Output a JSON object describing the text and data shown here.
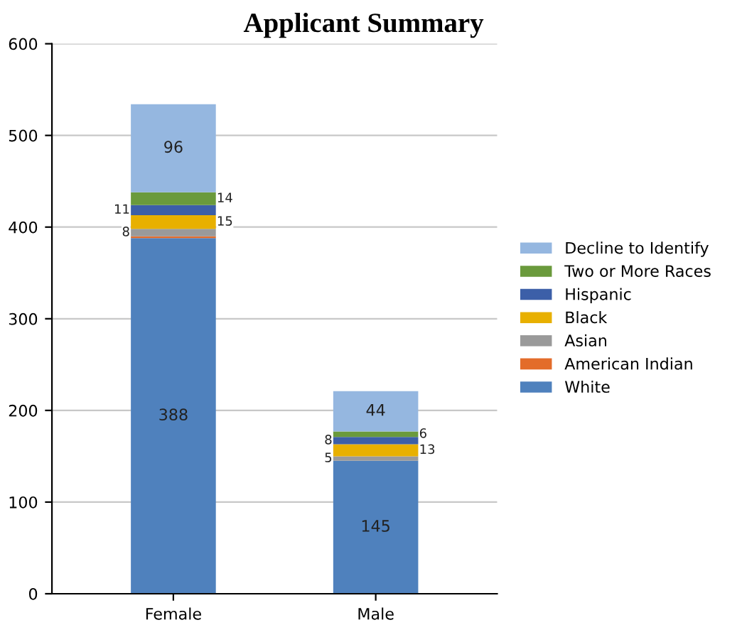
{
  "chart_data": {
    "type": "bar",
    "title": "Applicant Summary",
    "categories": [
      "Female",
      "Male"
    ],
    "stacked": true,
    "ylim": [
      0,
      600
    ],
    "yticks": [
      0,
      100,
      200,
      300,
      400,
      500,
      600
    ],
    "grid": "y",
    "legend": "right",
    "series": [
      {
        "name": "White",
        "color": "#4f81bd",
        "values": [
          388,
          145
        ],
        "value_labels": [
          "388",
          "145"
        ]
      },
      {
        "name": "American Indian",
        "color": "#e36c2a",
        "values": [
          2,
          null
        ],
        "value_labels": [
          null,
          null
        ]
      },
      {
        "name": "Asian",
        "color": "#9a9a9a",
        "values": [
          8,
          5
        ],
        "value_labels": [
          "8",
          "5"
        ]
      },
      {
        "name": "Black",
        "color": "#e8b000",
        "values": [
          15,
          13
        ],
        "value_labels": [
          "15",
          "13"
        ]
      },
      {
        "name": "Hispanic",
        "color": "#3c5fa8",
        "values": [
          11,
          8
        ],
        "value_labels": [
          "11",
          "8"
        ]
      },
      {
        "name": "Two or More Races",
        "color": "#6a9a3c",
        "values": [
          14,
          6
        ],
        "value_labels": [
          "14",
          "6"
        ]
      },
      {
        "name": "Decline to Identify",
        "color": "#95b7e0",
        "values": [
          96,
          44
        ],
        "value_labels": [
          "96",
          "44"
        ]
      }
    ]
  }
}
